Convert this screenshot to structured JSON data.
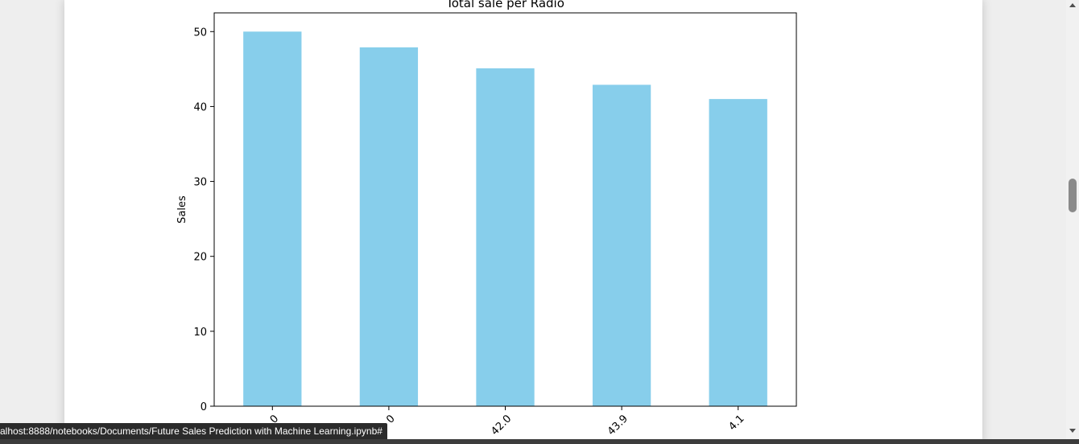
{
  "chart_data": {
    "type": "bar",
    "title": "Total sale per Radio",
    "xlabel": "",
    "ylabel": "Sales",
    "categories": [
      "0",
      "0",
      "42.0",
      "43.9",
      "4.1"
    ],
    "values": [
      50.0,
      47.9,
      45.1,
      42.9,
      41.0
    ],
    "ylim": [
      0,
      52.5
    ],
    "yticks": [
      0,
      10,
      20,
      30,
      40,
      50
    ],
    "bar_color": "#87ceeb",
    "grid": false,
    "legend": "none"
  },
  "status_url": "alhost:8888/notebooks/Documents/Future Sales Prediction with Machine Learning.ipynb#"
}
